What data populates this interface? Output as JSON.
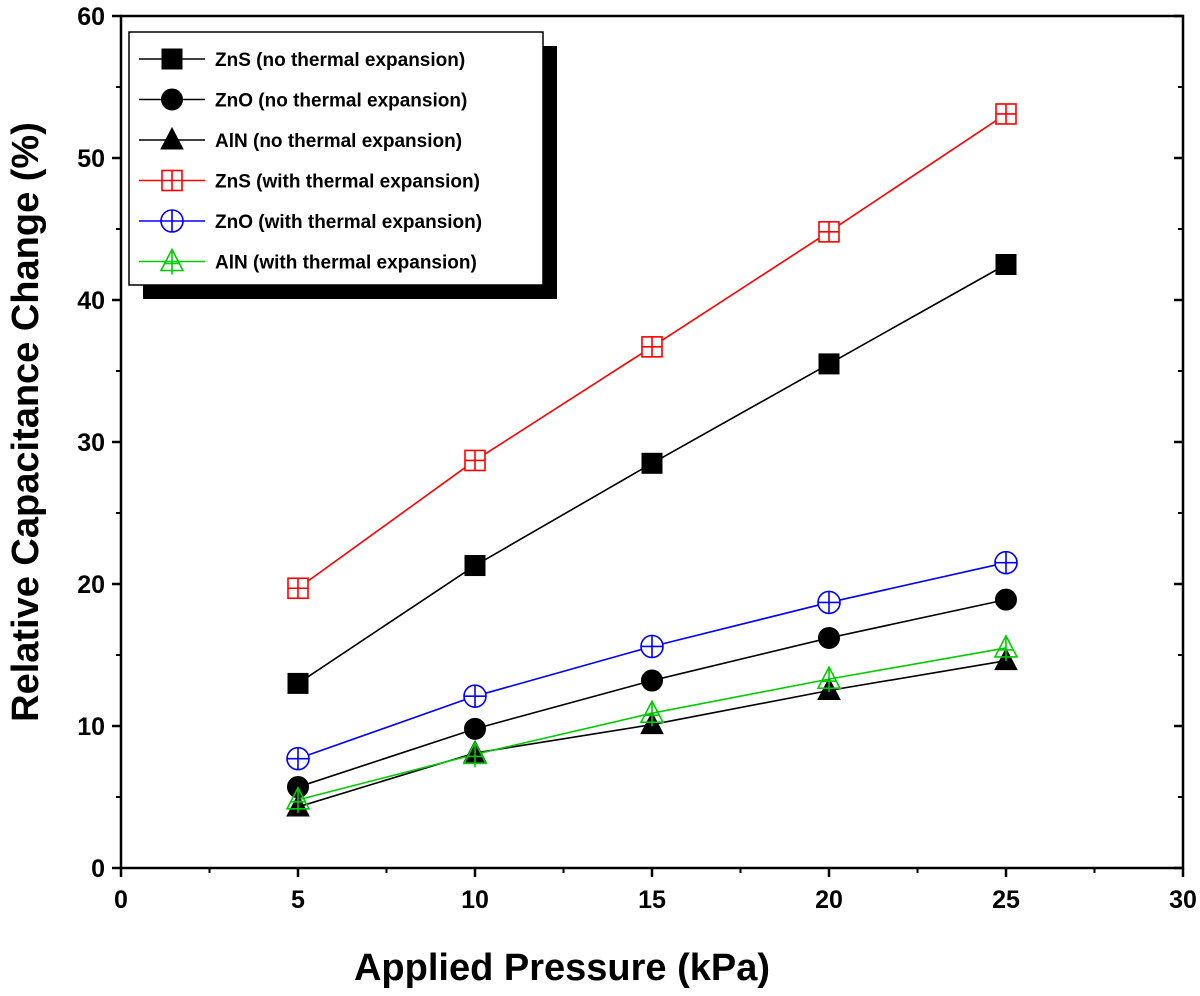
{
  "chart_data": {
    "type": "line",
    "title": "",
    "xlabel": "Applied Pressure (kPa)",
    "ylabel": "Relative Capacitance Change (%)",
    "xlim": [
      0,
      30
    ],
    "ylim": [
      0,
      60
    ],
    "x_ticks": [
      0,
      5,
      10,
      15,
      20,
      25,
      30
    ],
    "y_ticks": [
      0,
      10,
      20,
      30,
      40,
      50,
      60
    ],
    "x_ticks_labels": [
      "0",
      "5",
      "10",
      "15",
      "20",
      "25",
      "30"
    ],
    "y_ticks_labels": [
      "0",
      "10",
      "20",
      "30",
      "40",
      "50",
      "60"
    ],
    "grid": false,
    "legend_position": "top-left",
    "x": [
      5,
      10,
      15,
      20,
      25
    ],
    "series": [
      {
        "name": "ZnS (no thermal expansion)",
        "color": "#000000",
        "marker": "square-filled",
        "values": [
          13.0,
          21.3,
          28.5,
          35.5,
          42.5
        ]
      },
      {
        "name": "ZnO (no thermal expansion)",
        "color": "#000000",
        "marker": "circle-filled",
        "values": [
          5.7,
          9.8,
          13.2,
          16.2,
          18.9
        ]
      },
      {
        "name": "AlN (no thermal expansion)",
        "color": "#000000",
        "marker": "triangle-filled",
        "values": [
          4.3,
          8.1,
          10.1,
          12.5,
          14.6
        ]
      },
      {
        "name": "ZnS (with thermal expansion)",
        "color": "#ff0000",
        "marker": "square-cross-open",
        "values": [
          19.7,
          28.7,
          36.7,
          44.8,
          53.1
        ]
      },
      {
        "name": "ZnO (with thermal expansion)",
        "color": "#0000ff",
        "marker": "circle-cross-open",
        "values": [
          7.7,
          12.1,
          15.6,
          18.7,
          21.5
        ]
      },
      {
        "name": "AlN (with thermal expansion)",
        "color": "#00cc00",
        "marker": "triangle-cross-open",
        "values": [
          4.8,
          8.0,
          10.9,
          13.3,
          15.5
        ]
      }
    ]
  }
}
